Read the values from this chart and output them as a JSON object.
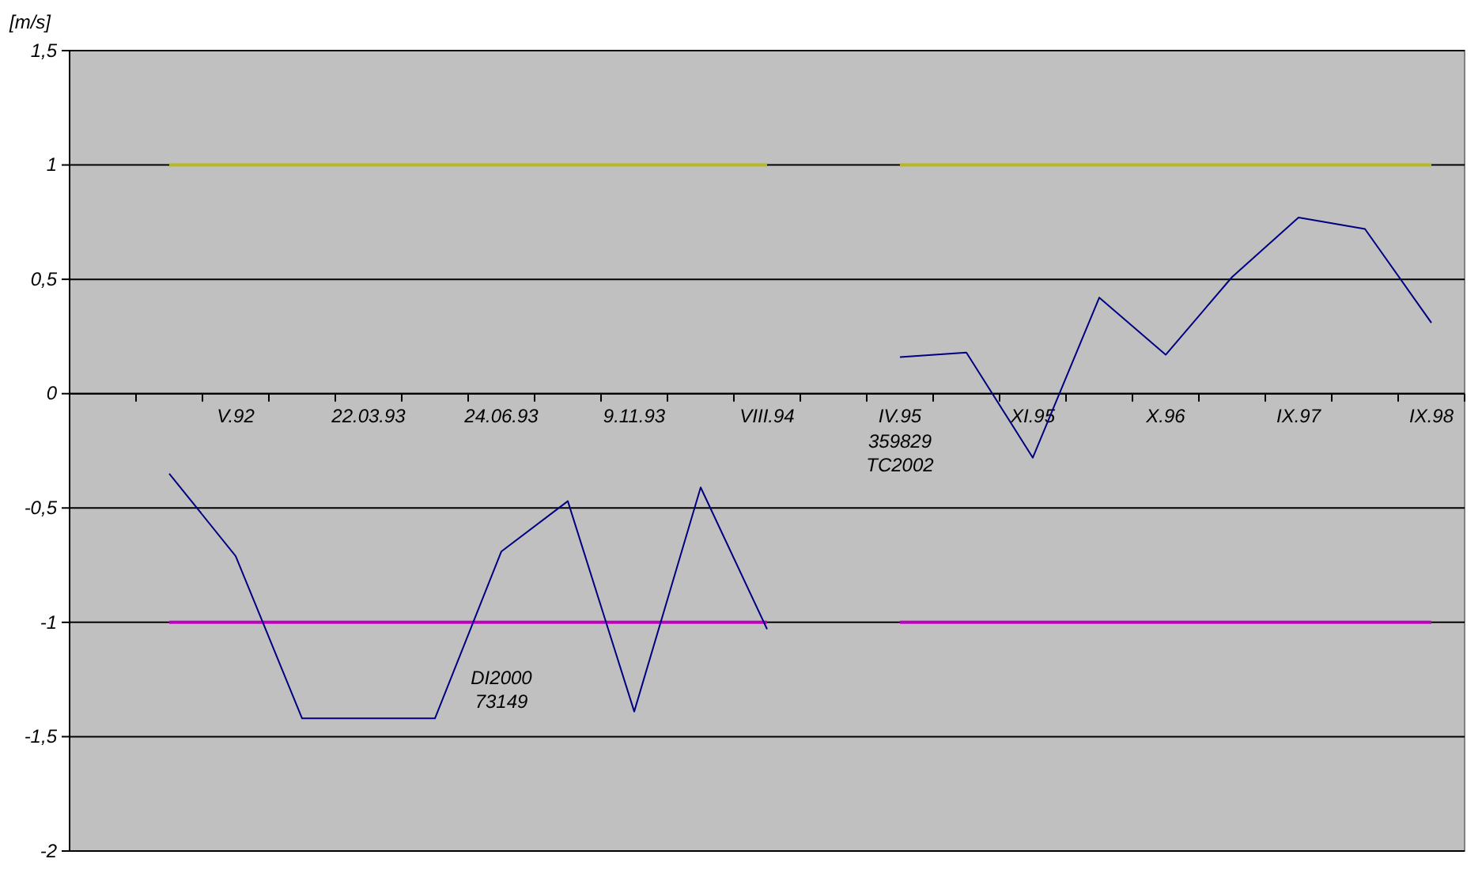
{
  "chart_data": {
    "type": "line",
    "ylabel": "[m/s]",
    "categories": [
      null,
      null,
      "V.92",
      null,
      "22.03.93",
      null,
      "24.06.93",
      null,
      "9.11.93",
      null,
      "VIII.94",
      null,
      "IV.95",
      null,
      "XI.95",
      null,
      "X.96",
      null,
      "IX.97",
      null,
      "IX.98"
    ],
    "series": [
      {
        "color": "#000080",
        "values": [
          null,
          -0.35,
          -0.71,
          -1.42,
          -1.42,
          -1.42,
          -0.69,
          -0.47,
          -1.39,
          -0.41,
          -1.03,
          null,
          0.16,
          0.18,
          -0.28,
          0.42,
          0.17,
          0.51,
          0.77,
          0.72,
          0.31
        ]
      },
      {
        "color": "#b8b820",
        "values": [
          null,
          1,
          1,
          1,
          1,
          1,
          1,
          1,
          1,
          1,
          1,
          null,
          1,
          1,
          1,
          1,
          1,
          1,
          1,
          1,
          1
        ]
      },
      {
        "color": "#c000c0",
        "values": [
          null,
          -1,
          -1,
          -1,
          -1,
          -1,
          -1,
          -1,
          -1,
          -1,
          -1,
          null,
          -1,
          -1,
          -1,
          -1,
          -1,
          -1,
          -1,
          -1,
          -1
        ]
      }
    ],
    "ylim": [
      -2,
      1.5
    ],
    "yticks": [
      {
        "value": -2,
        "label": "-2"
      },
      {
        "value": -1.5,
        "label": "-1,5"
      },
      {
        "value": -1,
        "label": "-1"
      },
      {
        "value": -0.5,
        "label": "-0,5"
      },
      {
        "value": 0,
        "label": "0"
      },
      {
        "value": 0.5,
        "label": "0,5"
      },
      {
        "value": 1,
        "label": "1"
      },
      {
        "value": 1.5,
        "label": "1,5"
      }
    ],
    "grid": "y",
    "marker": "none",
    "line_style": "solid",
    "annotations": [
      "359829\nTC2002",
      "DI2000\n73149"
    ]
  }
}
